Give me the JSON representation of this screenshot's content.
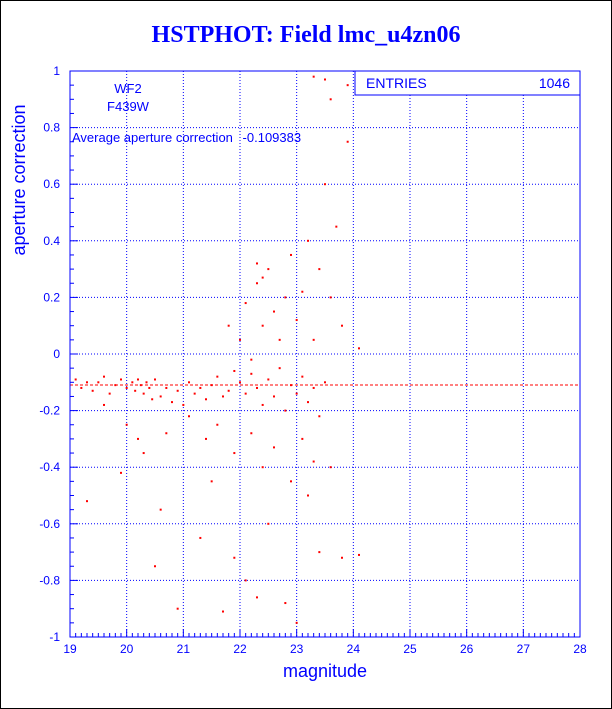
{
  "chart_data": {
    "type": "scatter",
    "title": "HSTPHOT: Field lmc_u4zn06",
    "xlabel": "magnitude",
    "ylabel": "aperture correction",
    "xlim": [
      19,
      28
    ],
    "ylim": [
      -1,
      1
    ],
    "x_ticks": [
      "19",
      "20",
      "21",
      "22",
      "23",
      "24",
      "25",
      "26",
      "27",
      "28"
    ],
    "y_ticks": [
      "-1",
      "-0.8",
      "-0.6",
      "-0.4",
      "-0.2",
      "0",
      "0.2",
      "0.4",
      "0.6",
      "0.8",
      "1"
    ],
    "grid": true,
    "stats_box": {
      "label": "ENTRIES",
      "value": "1046"
    },
    "chip_label": "WF2",
    "filter_label": "F439W",
    "average_label": "Average aperture correction",
    "average_value": "-0.109383",
    "average_line_y": -0.109383,
    "point_color": "#ff0000",
    "axis_color": "#0000ff",
    "series": [
      {
        "points": [
          [
            19.1,
            -0.09
          ],
          [
            19.2,
            -0.12
          ],
          [
            19.3,
            -0.1
          ],
          [
            19.4,
            -0.13
          ],
          [
            19.5,
            -0.1
          ],
          [
            19.6,
            -0.08
          ],
          [
            19.7,
            -0.14
          ],
          [
            19.8,
            -0.11
          ],
          [
            19.9,
            -0.09
          ],
          [
            20.0,
            -0.12
          ],
          [
            20.1,
            -0.1
          ],
          [
            20.15,
            -0.13
          ],
          [
            20.2,
            -0.09
          ],
          [
            20.25,
            -0.11
          ],
          [
            20.3,
            -0.14
          ],
          [
            20.35,
            -0.1
          ],
          [
            20.4,
            -0.12
          ],
          [
            20.45,
            -0.16
          ],
          [
            20.5,
            -0.09
          ],
          [
            20.6,
            -0.15
          ],
          [
            20.7,
            -0.12
          ],
          [
            20.8,
            -0.17
          ],
          [
            20.9,
            -0.13
          ],
          [
            21.0,
            -0.18
          ],
          [
            21.1,
            -0.1
          ],
          [
            21.2,
            -0.14
          ],
          [
            21.3,
            -0.12
          ],
          [
            21.4,
            -0.16
          ],
          [
            21.5,
            -0.11
          ],
          [
            21.6,
            -0.08
          ],
          [
            21.7,
            -0.15
          ],
          [
            21.8,
            -0.13
          ],
          [
            21.9,
            -0.06
          ],
          [
            22.0,
            -0.1
          ],
          [
            22.1,
            -0.14
          ],
          [
            22.2,
            -0.07
          ],
          [
            22.3,
            -0.12
          ],
          [
            22.4,
            -0.18
          ],
          [
            22.5,
            -0.09
          ],
          [
            22.6,
            -0.15
          ],
          [
            22.7,
            -0.05
          ],
          [
            22.8,
            -0.2
          ],
          [
            22.9,
            -0.11
          ],
          [
            23.0,
            -0.14
          ],
          [
            23.1,
            -0.08
          ],
          [
            23.2,
            -0.17
          ],
          [
            23.3,
            -0.12
          ],
          [
            23.4,
            -0.22
          ],
          [
            23.5,
            -0.1
          ],
          [
            19.3,
            -0.52
          ],
          [
            19.9,
            -0.42
          ],
          [
            20.2,
            -0.3
          ],
          [
            20.5,
            -0.75
          ],
          [
            20.6,
            -0.55
          ],
          [
            20.9,
            -0.9
          ],
          [
            21.3,
            -0.65
          ],
          [
            21.5,
            -0.45
          ],
          [
            21.7,
            -0.91
          ],
          [
            21.9,
            -0.72
          ],
          [
            22.1,
            -0.8
          ],
          [
            22.3,
            -0.86
          ],
          [
            22.5,
            -0.6
          ],
          [
            22.8,
            -0.88
          ],
          [
            23.0,
            -0.95
          ],
          [
            23.2,
            -0.5
          ],
          [
            23.4,
            -0.7
          ],
          [
            23.6,
            -0.4
          ],
          [
            23.8,
            -0.72
          ],
          [
            24.1,
            -0.71
          ],
          [
            21.8,
            0.1
          ],
          [
            22.0,
            0.05
          ],
          [
            22.1,
            0.18
          ],
          [
            22.2,
            -0.02
          ],
          [
            22.3,
            0.25
          ],
          [
            22.4,
            0.1
          ],
          [
            22.5,
            0.3
          ],
          [
            22.6,
            0.15
          ],
          [
            22.7,
            0.05
          ],
          [
            22.8,
            0.2
          ],
          [
            22.9,
            0.35
          ],
          [
            23.0,
            0.12
          ],
          [
            23.1,
            0.22
          ],
          [
            23.2,
            0.4
          ],
          [
            23.3,
            0.05
          ],
          [
            23.4,
            0.3
          ],
          [
            23.5,
            0.6
          ],
          [
            23.6,
            0.2
          ],
          [
            23.7,
            0.45
          ],
          [
            23.8,
            0.1
          ],
          [
            23.9,
            0.75
          ],
          [
            23.3,
            0.98
          ],
          [
            23.5,
            0.97
          ],
          [
            23.6,
            0.9
          ],
          [
            23.9,
            0.95
          ],
          [
            24.1,
            0.02
          ],
          [
            22.3,
            0.32
          ],
          [
            22.4,
            0.27
          ],
          [
            21.4,
            -0.3
          ],
          [
            21.6,
            -0.25
          ],
          [
            21.9,
            -0.35
          ],
          [
            22.2,
            -0.28
          ],
          [
            22.4,
            -0.4
          ],
          [
            22.6,
            -0.33
          ],
          [
            22.9,
            -0.45
          ],
          [
            23.1,
            -0.3
          ],
          [
            23.3,
            -0.38
          ],
          [
            20.3,
            -0.35
          ],
          [
            20.0,
            -0.25
          ],
          [
            20.7,
            -0.28
          ],
          [
            21.1,
            -0.22
          ],
          [
            19.6,
            -0.18
          ]
        ]
      }
    ]
  }
}
